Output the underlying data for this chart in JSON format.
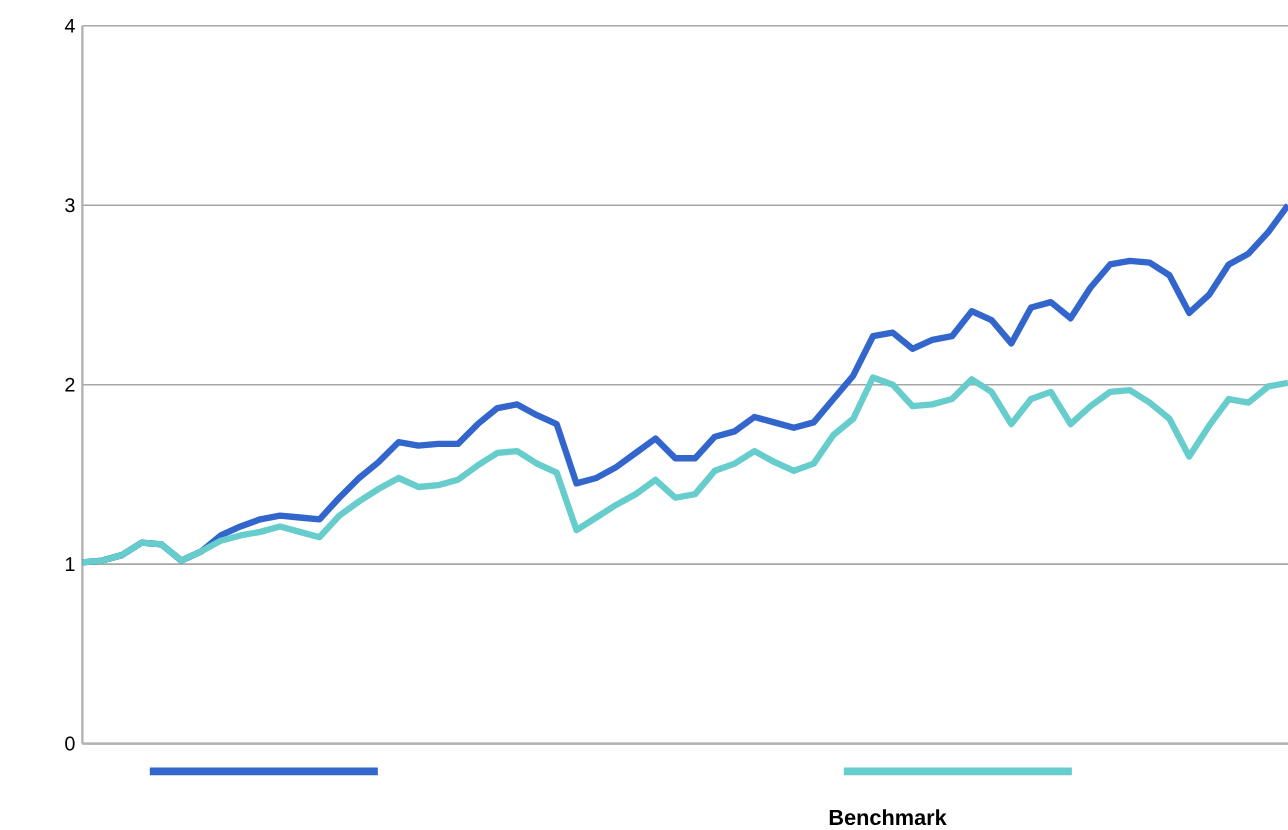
{
  "chart_data": {
    "type": "line",
    "categories": [
      null,
      null,
      null,
      null,
      null,
      null,
      null,
      null,
      null,
      null,
      null,
      null,
      null,
      null,
      null,
      null,
      null,
      null,
      null,
      null,
      null,
      null,
      null,
      null,
      null,
      null,
      null,
      null,
      null,
      null,
      null,
      null,
      null,
      null,
      null,
      null,
      null,
      null,
      null,
      null,
      null,
      null,
      null,
      null,
      null,
      null,
      null,
      null,
      null,
      null,
      null,
      null,
      null,
      null,
      null,
      null,
      null,
      null,
      null,
      null,
      null,
      null
    ],
    "series": [
      {
        "color": "#3366cc",
        "values": [
          1.01,
          1.02,
          1.05,
          1.12,
          1.11,
          1.02,
          1.07,
          1.16,
          1.21,
          1.25,
          1.27,
          1.26,
          1.25,
          1.37,
          1.48,
          1.57,
          1.68,
          1.66,
          1.67,
          1.67,
          1.78,
          1.87,
          1.89,
          1.83,
          1.78,
          1.45,
          1.48,
          1.54,
          1.62,
          1.7,
          1.59,
          1.59,
          1.71,
          1.74,
          1.82,
          1.79,
          1.76,
          1.79,
          1.92,
          2.05,
          2.27,
          2.29,
          2.2,
          2.25,
          2.27,
          2.41,
          2.36,
          2.23,
          2.43,
          2.46,
          2.37,
          2.54,
          2.67,
          2.69,
          2.68,
          2.61,
          2.4,
          2.5,
          2.67,
          2.73,
          2.85,
          3.0
        ]
      },
      {
        "name": "Benchmark",
        "color": "#66cccc",
        "values": [
          1.01,
          1.02,
          1.05,
          1.12,
          1.11,
          1.02,
          1.07,
          1.13,
          1.16,
          1.18,
          1.21,
          1.18,
          1.15,
          1.27,
          1.35,
          1.42,
          1.48,
          1.43,
          1.44,
          1.47,
          1.55,
          1.62,
          1.63,
          1.56,
          1.51,
          1.19,
          1.26,
          1.33,
          1.39,
          1.47,
          1.37,
          1.39,
          1.52,
          1.56,
          1.63,
          1.57,
          1.52,
          1.56,
          1.72,
          1.81,
          2.04,
          2.0,
          1.88,
          1.89,
          1.92,
          2.03,
          1.96,
          1.78,
          1.92,
          1.96,
          1.78,
          1.88,
          1.96,
          1.97,
          1.9,
          1.81,
          1.6,
          1.77,
          1.92,
          1.9,
          1.99,
          2.01
        ]
      }
    ],
    "ylim": [
      0,
      4
    ],
    "yticks": [
      0,
      1,
      2,
      3,
      4
    ],
    "grid": "y",
    "legend": "bottom",
    "tick_labels": "y",
    "line_style": "solid",
    "marker": "none"
  }
}
